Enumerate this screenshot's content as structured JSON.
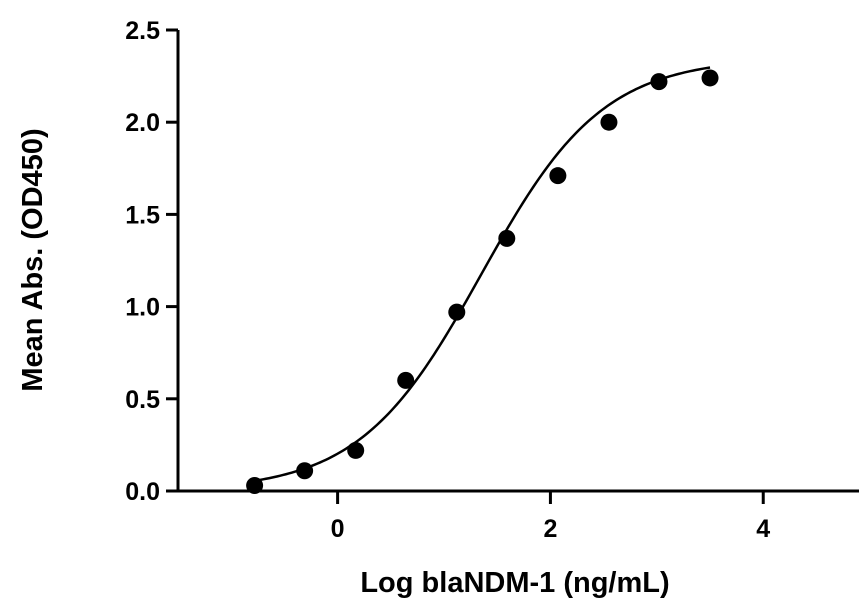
{
  "chart_data": {
    "type": "scatter",
    "title": "",
    "xlabel": "Log blaNDM-1 (ng/mL)",
    "ylabel": "Mean  Abs. (OD450)",
    "xlim": [
      -1.5,
      4.9
    ],
    "ylim": [
      0,
      2.5
    ],
    "xticks": [
      0,
      2,
      4
    ],
    "xtick_labels": [
      "0",
      "2",
      "4"
    ],
    "yticks": [
      0.0,
      0.5,
      1.0,
      1.5,
      2.0,
      2.5
    ],
    "ytick_labels": [
      "0.0",
      "0.5",
      "1.0",
      "1.5",
      "2.0",
      "2.5"
    ],
    "grid": false,
    "legend": "none",
    "series": [
      {
        "x": [
          -0.78,
          -0.31,
          0.17,
          0.64,
          1.12,
          1.59,
          2.07,
          2.55,
          3.02,
          3.5
        ],
        "y": [
          0.03,
          0.11,
          0.22,
          0.6,
          0.97,
          1.37,
          1.71,
          2.0,
          2.22,
          2.24
        ],
        "marker": "circle",
        "color": "#000000",
        "fit": {
          "model": "4PL",
          "bottom": 0.0,
          "top": 2.35,
          "logEC50": 1.35,
          "hill": 0.76,
          "x_range": [
            -0.78,
            3.5
          ]
        }
      }
    ]
  }
}
